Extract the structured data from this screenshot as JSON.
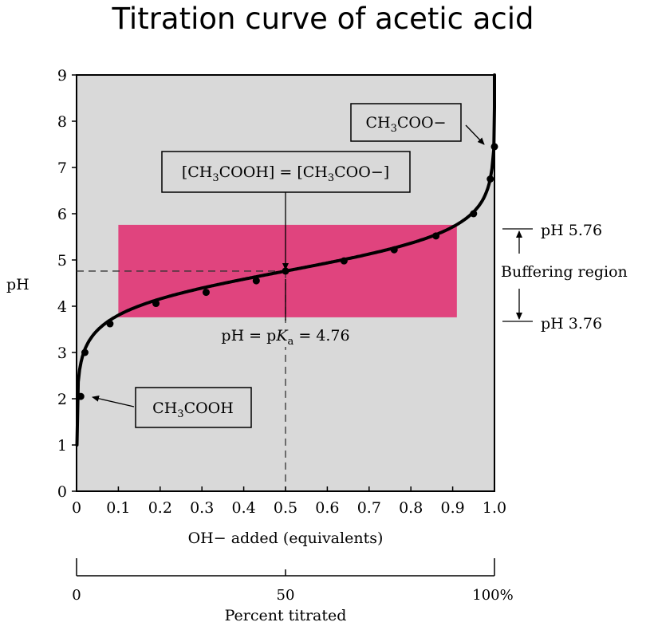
{
  "title": "Titration curve of acetic acid",
  "chart_data": {
    "type": "line",
    "title": "Titration curve of acetic acid",
    "xlabel": "OH− added (equivalents)",
    "ylabel": "pH",
    "xlim": [
      0,
      1.0
    ],
    "ylim": [
      0,
      9
    ],
    "x_ticks": [
      "0",
      "0.1",
      "0.2",
      "0.3",
      "0.4",
      "0.5",
      "0.6",
      "0.7",
      "0.8",
      "0.9",
      "1.0"
    ],
    "y_ticks": [
      "0",
      "1",
      "2",
      "3",
      "4",
      "5",
      "6",
      "7",
      "8",
      "9"
    ],
    "secondary_axis": {
      "label": "Percent titrated",
      "ticks": [
        "0",
        "50",
        "100%"
      ]
    },
    "series": [
      {
        "points": [
          {
            "x": 0.01,
            "y": 2.05
          },
          {
            "x": 0.02,
            "y": 3.0
          },
          {
            "x": 0.08,
            "y": 3.62
          },
          {
            "x": 0.19,
            "y": 4.06
          },
          {
            "x": 0.31,
            "y": 4.3
          },
          {
            "x": 0.43,
            "y": 4.55
          },
          {
            "x": 0.5,
            "y": 4.76
          },
          {
            "x": 0.64,
            "y": 4.98
          },
          {
            "x": 0.76,
            "y": 5.22
          },
          {
            "x": 0.86,
            "y": 5.52
          },
          {
            "x": 0.95,
            "y": 6.0
          },
          {
            "x": 0.99,
            "y": 6.75
          },
          {
            "x": 1.0,
            "y": 7.45
          }
        ]
      }
    ],
    "buffer_region": {
      "x_range": [
        0.1,
        0.91
      ],
      "y_range": [
        3.76,
        5.76
      ],
      "color": "#e0447e"
    },
    "annotations": {
      "acid_label": {
        "chem": "CH",
        "sub": "3",
        "rest": "COOH"
      },
      "base_label": {
        "chem": "CH",
        "sub": "3",
        "rest": "COO−"
      },
      "equal_label": {
        "a": "[CH",
        "asub": "3",
        "b": "COOH] = [CH",
        "bsub": "3",
        "c": "COO−]"
      },
      "pka_label": {
        "a": "pH = p",
        "k": "K",
        "ksub": "a",
        "b": " = 4.76"
      },
      "ph_high": "pH 5.76",
      "ph_low": "pH 3.76",
      "buffer_text": "Buffering region"
    },
    "colors": {
      "plot_bg": "#d9d9d9",
      "buffer": "#e0447e",
      "curve": "#000000"
    },
    "grid": false,
    "legend": "none"
  }
}
